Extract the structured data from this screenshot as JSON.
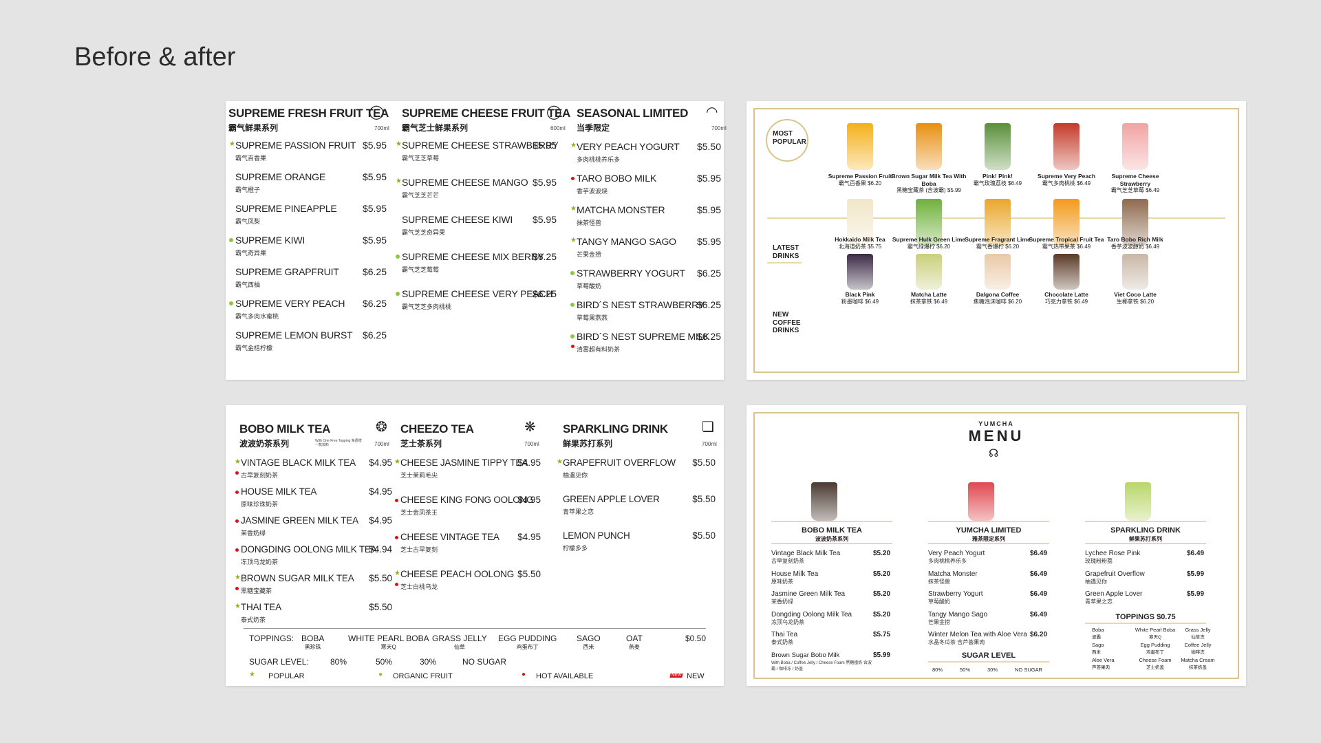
{
  "page": {
    "title": "Before & after"
  },
  "p1": {
    "c1": {
      "title": "SUPREME FRESH FRUIT TEA",
      "zh": "霸气鲜果系列",
      "ml": "700ml",
      "items": [
        [
          "SUPREME PASSION FRUIT",
          "$5.95",
          "霸气百香果"
        ],
        [
          "SUPREME ORANGE",
          "$5.95",
          "霸气橙子"
        ],
        [
          "SUPREME PINEAPPLE",
          "$5.95",
          "霸气凤梨"
        ],
        [
          "SUPREME KIWI",
          "$5.95",
          "霸气奇异果"
        ],
        [
          "SUPREME GRAPFRUIT",
          "$6.25",
          "霸气西柚"
        ],
        [
          "SUPREME VERY PEACH",
          "$6.25",
          "霸气多肉水蜜桃"
        ],
        [
          "SUPREME LEMON BURST",
          "$6.25",
          "霸气金桔柠檬"
        ]
      ]
    },
    "c2": {
      "title": "SUPREME CHEESE FRUIT TEA",
      "zh": "霸气芝士鲜果系列",
      "ml": "600ml",
      "items": [
        [
          "SUPREME CHEESE STRAWBERRY",
          "$5.95",
          "霸气芝芝草莓"
        ],
        [
          "SUPREME CHEESE MANGO",
          "$5.95",
          "霸气芝芝芒芒"
        ],
        [
          "SUPREME CHEESE KIWI",
          "$5.95",
          "霸气芝芝奇异果"
        ],
        [
          "SUPREME CHEESE MIX BERRY",
          "$6.25",
          "霸气芝芝莓莓"
        ],
        [
          "SUPREME CHEESE VERY PEACH",
          "$6.25",
          "霸气芝芝多肉桃桃"
        ]
      ]
    },
    "c3": {
      "title": "SEASONAL LIMITED",
      "zh": "当季限定",
      "ml": "700ml",
      "items": [
        [
          "VERY PEACH YOGURT",
          "$5.50",
          "多肉桃桃养乐多"
        ],
        [
          "TARO BOBO MILK",
          "$5.95",
          "香芋波波烧"
        ],
        [
          "MATCHA MONSTER",
          "$5.95",
          "抹茶怪兽"
        ],
        [
          "TANGY MANGO SAGO",
          "$5.95",
          "芒果金捞"
        ],
        [
          "STRAWBERRY YOGURT",
          "$6.25",
          "草莓酸奶"
        ],
        [
          "BIRD´S NEST STRAWBERRY",
          "$6.25",
          "草莓果燕燕"
        ],
        [
          "BIRD´S NEST SUPREME MILK",
          "$6.25",
          "清雾超有料奶茶"
        ]
      ]
    }
  },
  "p2": {
    "most": "MOST POPULAR",
    "latest": "LATEST DRINKS",
    "coffee": "NEW COFFEE DRINKS",
    "row1": [
      [
        "Supreme Passion Fruit",
        "霸气百香果 $6.20"
      ],
      [
        "Brown Sugar Milk Tea With Boba",
        "黑糖宝藏茶 (含波霸) $5.99"
      ],
      [
        "Pink! Pink!",
        "霸气玫瑰荔枝 $6.49"
      ],
      [
        "Supreme Very Peach",
        "霸气多肉桃桃 $6.49"
      ],
      [
        "Supreme Cheese Strawberry",
        "霸气芝芝草莓 $6.49"
      ]
    ],
    "row2": [
      [
        "Hokkaido Milk Tea",
        "北海道奶茶 $5.75"
      ],
      [
        "Supreme Hulk Green Lime",
        "霸气绿爆柠 $6.20"
      ],
      [
        "Supreme Fragrant Lime",
        "霸气香爆柠 $6.20"
      ],
      [
        "Supreme Tropical Fruit Tea",
        "霸气热带果茶 $6.49"
      ],
      [
        "Taro Bobo Rich Milk",
        "香芋波波醇奶 $6.49"
      ]
    ],
    "row3": [
      [
        "Black Pink",
        "粉墨咖啡 $6.49"
      ],
      [
        "Matcha Latte",
        "抹茶拿铁 $6.49"
      ],
      [
        "Dalgona Coffee",
        "焦糖泡沫咖啡 $6.20"
      ],
      [
        "Chocolate Latte",
        "巧克力拿铁 $6.49"
      ],
      [
        "Viet Coco Latte",
        "生椰拿铁 $6.20"
      ]
    ]
  },
  "p3": {
    "c1": {
      "title": "BOBO MILK TEA",
      "zh": "波波奶茶系列",
      "note": "With One Free Topping 免费赠一款加料",
      "ml": "700ml",
      "items": [
        [
          "VINTAGE BLACK MILK TEA",
          "$4.95",
          "古早复刻奶茶"
        ],
        [
          "HOUSE MILK TEA",
          "$4.95",
          "原味珍珠奶茶"
        ],
        [
          "JASMINE GREEN MILK TEA",
          "$4.95",
          "茉香奶绿"
        ],
        [
          "DONGDING OOLONG MILK TEA",
          "$4.94",
          "冻顶乌龙奶茶"
        ],
        [
          "BROWN SUGAR MILK TEA",
          "$5.50",
          "黑糖宝藏茶"
        ],
        [
          "THAI TEA",
          "$5.50",
          "泰式奶茶"
        ]
      ]
    },
    "c2": {
      "title": "CHEEZO TEA",
      "zh": "芝士茶系列",
      "ml": "700ml",
      "items": [
        [
          "CHEESE JASMINE TIPPY TEA",
          "$4.95",
          "芝士茉莉毛尖"
        ],
        [
          "CHEESE KING FONG OOLONG",
          "$4.95",
          "芝士金凤茶王"
        ],
        [
          "CHEESE VINTAGE TEA",
          "$4.95",
          "芝士古早复刻"
        ],
        [
          "CHEESE PEACH OOLONG",
          "$5.50",
          "芝士白桃乌龙"
        ]
      ]
    },
    "c3": {
      "title": "SPARKLING DRINK",
      "zh": "鲜果苏打系列",
      "ml": "700ml",
      "items": [
        [
          "GRAPEFRUIT OVERFLOW",
          "$5.50",
          "柚遇见你"
        ],
        [
          "GREEN APPLE LOVER",
          "$5.50",
          "青苹果之恋"
        ],
        [
          "LEMON PUNCH",
          "$5.50",
          "柠檬多多"
        ]
      ]
    },
    "toppings_label": "TOPPINGS:",
    "toppings": [
      [
        "BOBA",
        "黑珍珠"
      ],
      [
        "WHITE PEARL BOBA",
        "寒天Q"
      ],
      [
        "GRASS JELLY",
        "仙草"
      ],
      [
        "EGG PUDDING",
        "鸡蛋布丁"
      ],
      [
        "SAGO",
        "西米"
      ],
      [
        "OAT",
        "燕麦"
      ]
    ],
    "toppings_price": "$0.50",
    "sugar_label": "SUGAR LEVEL:",
    "sugar": [
      "80%",
      "50%",
      "30%",
      "NO SUGAR"
    ],
    "legend": {
      "popular": "POPULAR",
      "organic": "ORGANIC FRUIT",
      "hot": "HOT AVAILABLE",
      "new": "NEW",
      "new_tag": "NEW"
    }
  },
  "p4": {
    "brand": "YUMCHA",
    "menu": "MENU",
    "bobo": {
      "title": "BOBO MILK TEA",
      "zh": "波波奶茶系列",
      "items": [
        [
          "Vintage Black Milk Tea",
          "古早复刻奶茶",
          "$5.20"
        ],
        [
          "House Milk Tea",
          "原味奶茶",
          "$5.20"
        ],
        [
          "Jasmine Green Milk Tea",
          "茉香奶绿",
          "$5.20"
        ],
        [
          "Dongding Oolong Milk Tea",
          "冻顶乌龙奶茶",
          "$5.20"
        ],
        [
          "Thai Tea",
          "泰式奶茶",
          "$5.75"
        ],
        [
          "Brown Sugar Bobo Milk",
          "With Boba / Coffee Jelly / Cheese Foam 黑糖撞奶 含波霸 / 咖啡冻 / 奶盖",
          "$5.99"
        ]
      ]
    },
    "limited": {
      "title": "YUMCHA LIMITED",
      "zh": "雅茶限定系列",
      "items": [
        [
          "Very Peach Yogurt",
          "多肉桃桃养乐多",
          "$6.49"
        ],
        [
          "Matcha Monster",
          "抹茶怪兽",
          "$6.49"
        ],
        [
          "Strawberry Yogurt",
          "草莓酸奶",
          "$6.49"
        ],
        [
          "Tangy Mango Sago",
          "芒果金捞",
          "$6.49"
        ],
        [
          "Winter Melon Tea with Aloe Vera",
          "水晶冬瓜茶 含芦荟果肉",
          "$6.20"
        ]
      ]
    },
    "sugar": {
      "title": "SUGAR LEVEL",
      "levels": [
        "80%",
        "50%",
        "30%",
        "NO SUGAR"
      ]
    },
    "sparkling": {
      "title": "SPARKLING DRINK",
      "zh": "鲜果苏打系列",
      "items": [
        [
          "Lychee Rose Pink",
          "玫瑰粉粉荔",
          "$6.49"
        ],
        [
          "Grapefruit Overflow",
          "柚遇见你",
          "$5.99"
        ],
        [
          "Green Apple Lover",
          "青苹果之恋",
          "$5.99"
        ]
      ]
    },
    "toppings": {
      "title": "TOPPINGS $0.75",
      "items": [
        [
          "Boba",
          "波霸"
        ],
        [
          "White Pearl Boba",
          "寒天Q"
        ],
        [
          "Grass Jelly",
          "仙草冻"
        ],
        [
          "Sago",
          "西米"
        ],
        [
          "Egg Pudding",
          "鸡蛋布丁"
        ],
        [
          "Coffee Jelly",
          "咖啡冻"
        ],
        [
          "Aloe Vera",
          "芦荟果肉"
        ],
        [
          "Cheese Foam",
          "芝士奶盖"
        ],
        [
          "Matcha Cream",
          "抹茶奶盖"
        ]
      ]
    }
  }
}
